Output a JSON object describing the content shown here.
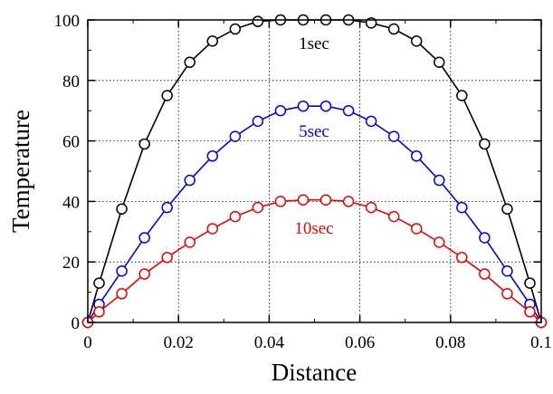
{
  "chart_data": {
    "type": "line",
    "title": "",
    "xlabel": "Distance",
    "ylabel": "Temperature",
    "xlim": [
      0,
      0.1
    ],
    "ylim": [
      0,
      100
    ],
    "x_ticks": [
      "0",
      "0.02",
      "0.04",
      "0.06",
      "0.08",
      "0.1"
    ],
    "y_ticks": [
      "0",
      "20",
      "40",
      "60",
      "80",
      "100"
    ],
    "grid": true,
    "legend": "none",
    "x": [
      0,
      0.0025,
      0.0075,
      0.0125,
      0.0175,
      0.0225,
      0.0275,
      0.0325,
      0.0375,
      0.0425,
      0.0475,
      0.0525,
      0.0575,
      0.0625,
      0.0675,
      0.0725,
      0.0775,
      0.0825,
      0.0875,
      0.0925,
      0.0975,
      0.1
    ],
    "series": [
      {
        "name": "1sec",
        "color": "#000000",
        "values": [
          0,
          13,
          37.5,
          59,
          75,
          86,
          93,
          97,
          99.5,
          100,
          100,
          100,
          100,
          99,
          97,
          93,
          86,
          75,
          59,
          37.5,
          13,
          0
        ]
      },
      {
        "name": "5sec",
        "color": "#0000ee",
        "values": [
          0,
          6,
          17,
          28,
          38,
          47,
          55,
          61.5,
          66.5,
          70,
          71.5,
          71.5,
          70,
          66.5,
          61.5,
          55,
          47,
          38,
          28,
          17,
          6,
          0
        ]
      },
      {
        "name": "10sec",
        "color": "#ee0000",
        "values": [
          0,
          3.5,
          9.5,
          16,
          21.5,
          26.5,
          31,
          35,
          38,
          40,
          40.5,
          40.5,
          40,
          38,
          35,
          31,
          26.5,
          21.5,
          16,
          9.5,
          3.5,
          0
        ]
      }
    ]
  }
}
